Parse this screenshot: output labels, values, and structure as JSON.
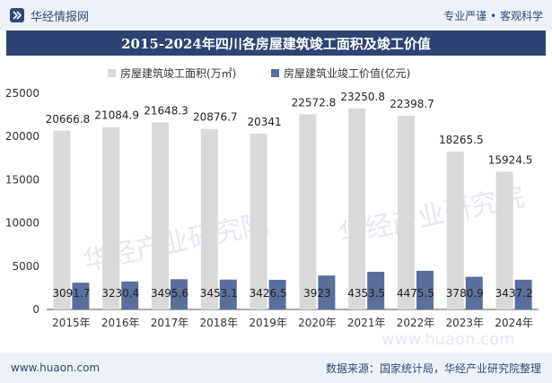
{
  "header": {
    "brand": "华经情报网",
    "tagline": "专业严谨 • 客观科学"
  },
  "footer": {
    "website": "www.huaon.com",
    "source": "数据来源：国家统计局，华经产业研究院整理"
  },
  "watermarks": [
    "华经产业研究院",
    "www.huaon.com"
  ],
  "colors": {
    "area_series": "#d9d9d9",
    "value_series": "#5b6e9c",
    "title_bg": "#2e4373",
    "header_bg": "#eef1f7"
  },
  "chart_data": {
    "type": "bar",
    "title": "2015-2024年四川各房屋建筑竣工面积及竣工价值",
    "categories": [
      "2015年",
      "2016年",
      "2017年",
      "2018年",
      "2019年",
      "2020年",
      "2021年",
      "2022年",
      "2023年",
      "2024年"
    ],
    "series": [
      {
        "name": "房屋建筑竣工面积(万㎡)",
        "values": [
          20666.8,
          21084.9,
          21648.3,
          20876.7,
          20341,
          22572.8,
          23250.8,
          22398.7,
          18265.5,
          15924.5
        ],
        "labels": [
          "20666.8",
          "21084.9",
          "21648.3",
          "20876.7",
          "20341",
          "22572.8",
          "23250.8",
          "22398.7",
          "18265.5",
          "15924.5"
        ]
      },
      {
        "name": "房屋建筑业竣工价值(亿元)",
        "values": [
          3091.7,
          3230.4,
          3495.6,
          3453.1,
          3426.5,
          3923,
          4353.5,
          4475.5,
          3780.9,
          3437.2
        ],
        "labels": [
          "3091.7",
          "3230.4",
          "3495.6",
          "3453.1",
          "3426.5",
          "3923",
          "4353.5",
          "4475.5",
          "3780.9",
          "3437.2"
        ]
      }
    ],
    "y_ticks": [
      "0",
      "5000",
      "10000",
      "15000",
      "20000",
      "25000"
    ],
    "ylim": [
      0,
      25000
    ],
    "legend_position": "top",
    "grid": false
  }
}
